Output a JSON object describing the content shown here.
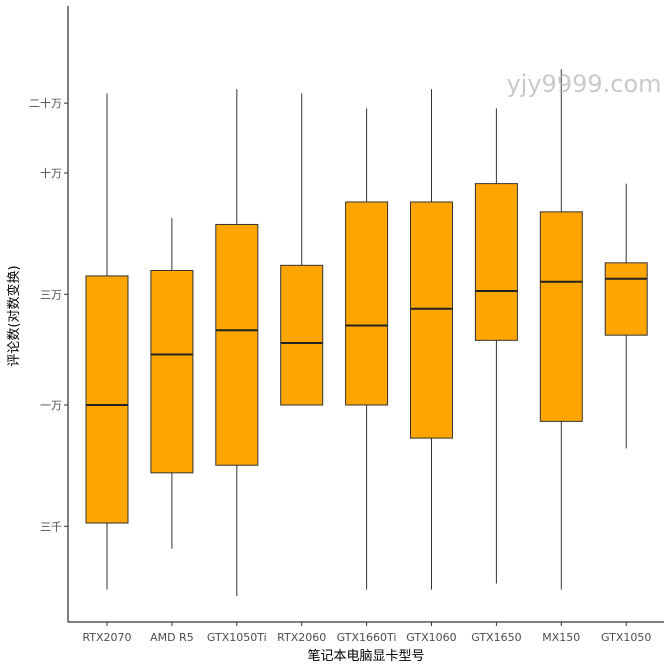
{
  "chart_data": {
    "type": "boxplot",
    "title": "",
    "xlabel": "笔记本电脑显卡型号",
    "ylabel": "评论数(对数变换)",
    "y_scale": "log",
    "ylim": [
      1600,
      250000
    ],
    "y_ticks": [
      {
        "value": 3000,
        "label": "三千"
      },
      {
        "value": 10000,
        "label": "一万"
      },
      {
        "value": 30000,
        "label": "三万"
      },
      {
        "value": 100000,
        "label": "十万"
      },
      {
        "value": 200000,
        "label": "二十万"
      }
    ],
    "box_color": "#FFA500",
    "categories": [
      "RTX2070",
      "AMD R5",
      "GTX1050Ti",
      "RTX2060",
      "GTX1660Ti",
      "GTX1060",
      "GTX1650",
      "MX150",
      "GTX1050"
    ],
    "boxes": [
      {
        "min": 1600,
        "q1": 3100,
        "median": 10000,
        "q3": 36000,
        "max": 220000
      },
      {
        "min": 2400,
        "q1": 5100,
        "median": 16500,
        "q3": 38000,
        "max": 64000
      },
      {
        "min": 1500,
        "q1": 5500,
        "median": 21000,
        "q3": 60000,
        "max": 230000
      },
      {
        "min": 10000,
        "q1": 10000,
        "median": 18500,
        "q3": 40000,
        "max": 220000
      },
      {
        "min": 1600,
        "q1": 10000,
        "median": 22000,
        "q3": 75000,
        "max": 190000
      },
      {
        "min": 1600,
        "q1": 7200,
        "median": 26000,
        "q3": 75000,
        "max": 230000
      },
      {
        "min": 1700,
        "q1": 19000,
        "median": 31000,
        "q3": 90000,
        "max": 190000
      },
      {
        "min": 1600,
        "q1": 8500,
        "median": 34000,
        "q3": 68000,
        "max": 280000
      },
      {
        "min": 6500,
        "q1": 20000,
        "median": 35000,
        "q3": 41000,
        "max": 90000
      }
    ]
  },
  "watermark": "yjy9999.com"
}
